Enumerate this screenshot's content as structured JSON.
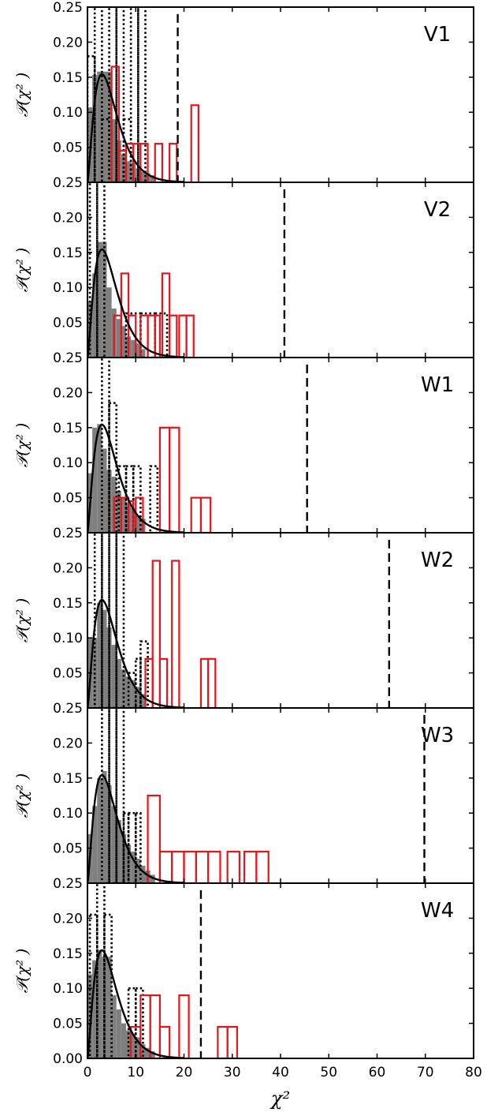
{
  "chart_data": {
    "type": "bar",
    "description_note": "",
    "xlabel": "χ²",
    "ylabel": "𝒫(χ² )",
    "xlim": [
      0,
      80
    ],
    "ylim": [
      0,
      0.25
    ],
    "x_ticks": [
      "0",
      "10",
      "20",
      "30",
      "40",
      "50",
      "60",
      "70",
      "80"
    ],
    "y_ticks_per_panel": [
      "0.25",
      "0.20",
      "0.15",
      "0.10",
      "0.05"
    ],
    "y_tick_bottom_panel_zero": "0.00",
    "colors": {
      "gray": "#7f7f7f",
      "red": "#e8141a",
      "black": "#000000"
    },
    "panels": [
      {
        "label": "V1",
        "threshold": 18.7,
        "gray": [
          [
            0,
            1,
            0.107
          ],
          [
            1,
            2,
            0.153
          ],
          [
            2,
            3,
            0.158
          ],
          [
            3,
            4,
            0.158
          ],
          [
            4,
            5,
            0.158
          ],
          [
            5,
            6,
            0.09
          ],
          [
            6,
            7,
            0.06
          ],
          [
            7,
            8,
            0.04
          ],
          [
            8,
            9,
            0.03
          ],
          [
            9,
            10,
            0.028
          ],
          [
            10,
            11,
            0.02
          ],
          [
            11,
            12,
            0.015
          ],
          [
            12,
            13,
            0.013
          ],
          [
            13,
            14,
            0.01
          ]
        ],
        "dotted": [
          [
            0,
            1.5,
            0.18
          ],
          [
            1.5,
            3,
            0.26
          ],
          [
            3,
            4.5,
            0.09
          ],
          [
            4.5,
            6,
            0.26
          ],
          [
            6,
            7.5,
            0.26
          ],
          [
            7.5,
            9,
            0.09
          ],
          [
            9,
            10.5,
            0.26
          ],
          [
            10.5,
            12,
            0.26
          ]
        ],
        "red": [
          [
            5,
            6.5,
            0.165
          ],
          [
            6.5,
            8,
            0.045
          ],
          [
            8,
            9.5,
            0.055
          ],
          [
            9.5,
            11,
            0.055
          ],
          [
            11,
            12.5,
            0.055
          ],
          [
            14,
            15.5,
            0.055
          ],
          [
            17,
            18.5,
            0.055
          ],
          [
            21.5,
            23,
            0.11
          ]
        ],
        "curve_peak": 3.0
      },
      {
        "label": "V2",
        "threshold": 40.8,
        "gray": [
          [
            0,
            1,
            0.08
          ],
          [
            1,
            2,
            0.12
          ],
          [
            2,
            3,
            0.165
          ],
          [
            3,
            4,
            0.165
          ],
          [
            4,
            5,
            0.1
          ],
          [
            5,
            6,
            0.07
          ],
          [
            6,
            7,
            0.055
          ],
          [
            7,
            8,
            0.045
          ],
          [
            8,
            9,
            0.03
          ],
          [
            9,
            10,
            0.025
          ],
          [
            10,
            11,
            0.02
          ],
          [
            11,
            12,
            0.012
          ]
        ],
        "dotted": [
          [
            0.5,
            2,
            0.26
          ],
          [
            2,
            3.5,
            0.26
          ],
          [
            8,
            11,
            0.063
          ],
          [
            11,
            14,
            0.063
          ],
          [
            14,
            16.5,
            0.063
          ]
        ],
        "red": [
          [
            5.5,
            7,
            0.06
          ],
          [
            7,
            8.5,
            0.12
          ],
          [
            8.5,
            10,
            0.06
          ],
          [
            11,
            12.5,
            0.06
          ],
          [
            12.5,
            14,
            0.06
          ],
          [
            14,
            15,
            0.06
          ],
          [
            15.5,
            17,
            0.12
          ],
          [
            17,
            18.5,
            0.06
          ],
          [
            19,
            20.5,
            0.06
          ],
          [
            20.5,
            22,
            0.06
          ]
        ],
        "curve_peak": 3.0
      },
      {
        "label": "W1",
        "threshold": 45.5,
        "gray": [
          [
            0,
            1,
            0.085
          ],
          [
            1,
            2,
            0.15
          ],
          [
            2,
            3,
            0.155
          ],
          [
            3,
            4,
            0.12
          ],
          [
            4,
            5,
            0.09
          ],
          [
            5,
            6,
            0.08
          ],
          [
            6,
            7,
            0.06
          ],
          [
            7,
            8,
            0.05
          ],
          [
            8,
            9,
            0.04
          ],
          [
            9,
            10,
            0.035
          ],
          [
            10,
            11,
            0.025
          ],
          [
            11,
            12,
            0.02
          ]
        ],
        "dotted": [
          [
            3,
            4.5,
            0.26
          ],
          [
            4.5,
            6,
            0.185
          ],
          [
            6.5,
            8,
            0.095
          ],
          [
            8,
            9.5,
            0.095
          ],
          [
            9.5,
            11,
            0.095
          ],
          [
            13,
            14.5,
            0.095
          ]
        ],
        "red": [
          [
            5.5,
            7,
            0.05
          ],
          [
            7,
            8.5,
            0.05
          ],
          [
            8.5,
            9.5,
            0.045
          ],
          [
            10,
            11.5,
            0.05
          ],
          [
            15,
            17,
            0.15
          ],
          [
            17,
            19,
            0.15
          ],
          [
            21.5,
            23.5,
            0.05
          ],
          [
            23.5,
            25.5,
            0.05
          ]
        ],
        "curve_peak": 2.8
      },
      {
        "label": "W2",
        "threshold": 62.5,
        "gray": [
          [
            0,
            1,
            0.1
          ],
          [
            1,
            2,
            0.1
          ],
          [
            2,
            3,
            0.15
          ],
          [
            3,
            4,
            0.14
          ],
          [
            4,
            5,
            0.115
          ],
          [
            5,
            6,
            0.09
          ],
          [
            6,
            7,
            0.07
          ],
          [
            7,
            8,
            0.055
          ],
          [
            8,
            9,
            0.045
          ],
          [
            9,
            10,
            0.04
          ],
          [
            10,
            11,
            0.03
          ],
          [
            11,
            12,
            0.02
          ]
        ],
        "dotted": [
          [
            1.5,
            3,
            0.26
          ],
          [
            3,
            4.5,
            0.26
          ],
          [
            4.5,
            6,
            0.26
          ],
          [
            6,
            7.5,
            0.26
          ],
          [
            8.5,
            10,
            0.05
          ],
          [
            10,
            11,
            0.07
          ],
          [
            11,
            12.5,
            0.095
          ]
        ],
        "red": [
          [
            12,
            13.5,
            0.07
          ],
          [
            13.5,
            15,
            0.21
          ],
          [
            15,
            16.5,
            0.07
          ],
          [
            17.5,
            19,
            0.21
          ],
          [
            23.5,
            25,
            0.07
          ],
          [
            25,
            26.5,
            0.07
          ]
        ],
        "curve_peak": 3.0
      },
      {
        "label": "W3",
        "threshold": 69.8,
        "gray": [
          [
            0,
            1,
            0.07
          ],
          [
            1,
            2,
            0.11
          ],
          [
            2,
            3,
            0.15
          ],
          [
            3,
            4,
            0.16
          ],
          [
            4,
            5,
            0.14
          ],
          [
            5,
            6,
            0.11
          ],
          [
            6,
            7,
            0.09
          ],
          [
            7,
            8,
            0.07
          ],
          [
            8,
            9,
            0.055
          ],
          [
            9,
            10,
            0.045
          ],
          [
            10,
            11,
            0.035
          ],
          [
            11,
            12,
            0.025
          ],
          [
            12,
            13,
            0.018
          ],
          [
            13,
            14,
            0.012
          ]
        ],
        "dotted": [
          [
            3,
            4.5,
            0.26
          ],
          [
            4.5,
            6,
            0.26
          ],
          [
            6,
            7.5,
            0.26
          ],
          [
            7.5,
            8.5,
            0.1
          ],
          [
            8.5,
            10,
            0.1
          ],
          [
            10,
            11,
            0.1
          ]
        ],
        "red": [
          [
            12.5,
            15,
            0.125
          ],
          [
            15,
            17.5,
            0.045
          ],
          [
            17.5,
            20,
            0.045
          ],
          [
            20,
            22.5,
            0.045
          ],
          [
            22.5,
            25,
            0.045
          ],
          [
            25,
            27.5,
            0.045
          ],
          [
            29,
            31.5,
            0.045
          ],
          [
            32.5,
            35,
            0.045
          ],
          [
            35,
            37.5,
            0.045
          ]
        ],
        "curve_peak": 3.0
      },
      {
        "label": "W4",
        "threshold": 23.5,
        "gray": [
          [
            0,
            1,
            0.12
          ],
          [
            1,
            2,
            0.14
          ],
          [
            2,
            3,
            0.155
          ],
          [
            3,
            4,
            0.145
          ],
          [
            4,
            5,
            0.145
          ],
          [
            5,
            6,
            0.09
          ],
          [
            6,
            7,
            0.07
          ],
          [
            7,
            8,
            0.05
          ],
          [
            8,
            9,
            0.04
          ],
          [
            9,
            10,
            0.035
          ],
          [
            10,
            11,
            0.03
          ],
          [
            11,
            12,
            0.02
          ],
          [
            12,
            13,
            0.015
          ],
          [
            13,
            14,
            0.01
          ]
        ],
        "dotted": [
          [
            0.5,
            2,
            0.205
          ],
          [
            2,
            3.5,
            0.26
          ],
          [
            3.5,
            5,
            0.205
          ],
          [
            8.5,
            10,
            0.1
          ],
          [
            10,
            11.5,
            0.1
          ]
        ],
        "red": [
          [
            9,
            11,
            0.045
          ],
          [
            11,
            13,
            0.09
          ],
          [
            13,
            15,
            0.09
          ],
          [
            15,
            17,
            0.045
          ],
          [
            19,
            21,
            0.09
          ],
          [
            27,
            29,
            0.045
          ],
          [
            29,
            31,
            0.045
          ]
        ],
        "curve_peak": 3.0
      }
    ]
  }
}
